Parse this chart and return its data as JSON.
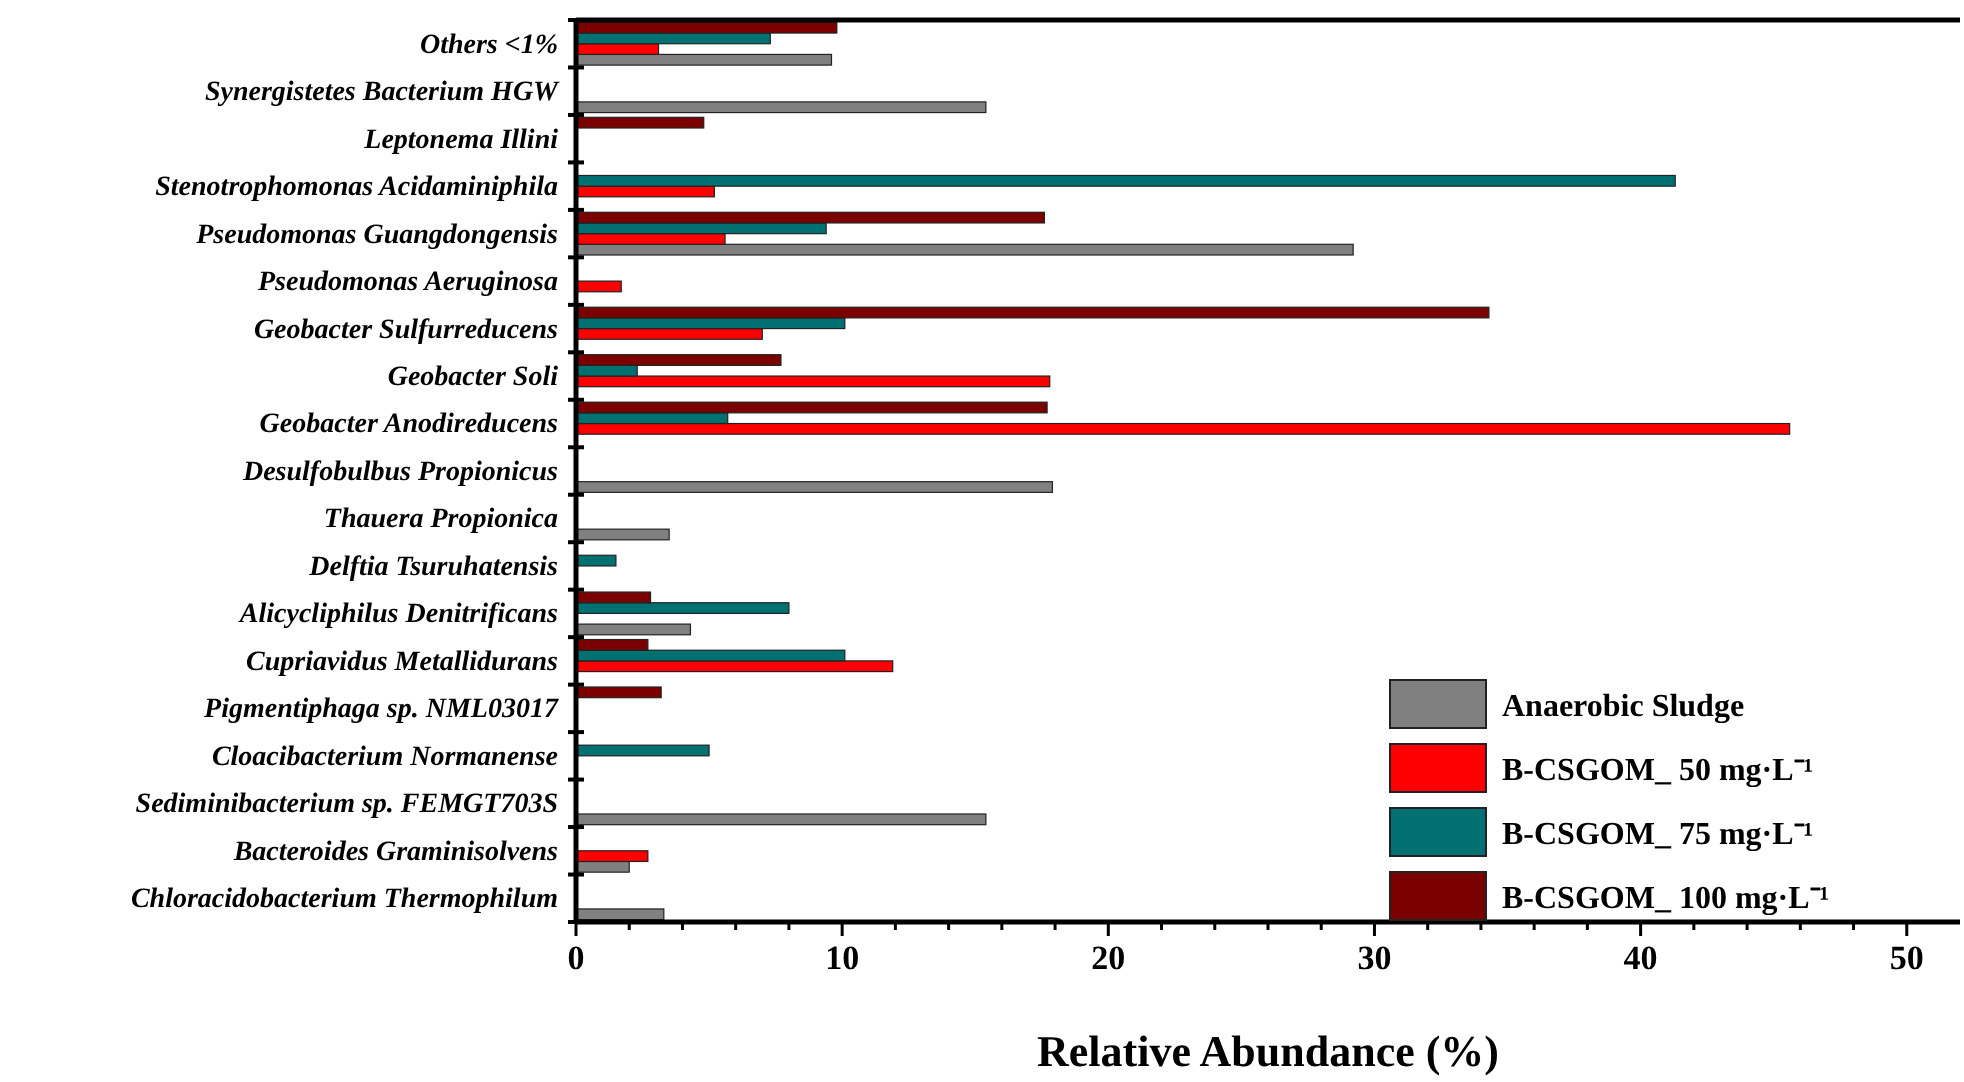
{
  "chart_data": {
    "type": "bar",
    "orientation": "horizontal",
    "xlabel": "Relative Abundance (%)",
    "categories": [
      "Others <1%",
      "Synergistetes Bacterium HGW",
      "Leptonema Illini",
      "Stenotrophomonas Acidaminiphila",
      "Pseudomonas Guangdongensis",
      "Pseudomonas Aeruginosa",
      "Geobacter Sulfurreducens",
      "Geobacter Soli",
      "Geobacter Anodireducens",
      "Desulfobulbus Propionicus",
      "Thauera Propionica",
      "Delftia Tsuruhatensis",
      "Alicycliphilus Denitrificans",
      "Cupriavidus Metallidurans",
      "Pigmentiphaga sp. NML03017",
      "Cloacibacterium Normanense",
      "Sediminibacterium sp. FEMGT703S",
      "Bacteroides Graminisolvens",
      "Chloracidobacterium Thermophilum"
    ],
    "series": [
      {
        "name": "Anaerobic Sludge",
        "color": "#808080",
        "values": [
          9.6,
          15.4,
          null,
          null,
          29.2,
          null,
          null,
          null,
          null,
          17.9,
          3.5,
          null,
          4.3,
          null,
          null,
          null,
          15.4,
          2.0,
          3.3
        ]
      },
      {
        "name": "B-CSGOM_ 50 mg·L⁻¹",
        "color": "#ff0000",
        "values": [
          3.1,
          null,
          null,
          5.2,
          5.6,
          1.7,
          7.0,
          17.8,
          45.6,
          null,
          null,
          null,
          null,
          11.9,
          null,
          null,
          null,
          2.7,
          null
        ]
      },
      {
        "name": "B-CSGOM_ 75 mg·L⁻¹",
        "color": "#007070",
        "values": [
          7.3,
          null,
          null,
          41.3,
          9.4,
          null,
          10.1,
          2.3,
          5.7,
          null,
          null,
          1.5,
          8.0,
          10.1,
          null,
          5.0,
          null,
          null,
          null
        ]
      },
      {
        "name": "B-CSGOM_ 100 mg·L⁻¹",
        "color": "#7b0000",
        "values": [
          9.8,
          null,
          4.8,
          null,
          17.6,
          null,
          34.3,
          7.7,
          17.7,
          null,
          null,
          null,
          2.8,
          2.7,
          3.2,
          null,
          null,
          null,
          null
        ]
      }
    ],
    "xlim": [
      0,
      52
    ],
    "xticks": [
      0,
      {
        "value": 2,
        "label": null
      },
      {
        "value": 4,
        "label": null
      },
      {
        "value": 6,
        "label": null
      },
      {
        "value": 8,
        "label": null
      },
      10,
      {
        "value": 12,
        "label": null
      },
      {
        "value": 14,
        "label": null
      },
      {
        "value": 16,
        "label": null
      },
      {
        "value": 18,
        "label": null
      },
      20,
      {
        "value": 22,
        "label": null
      },
      {
        "value": 24,
        "label": null
      },
      {
        "value": 26,
        "label": null
      },
      {
        "value": 28,
        "label": null
      },
      30,
      {
        "value": 32,
        "label": null
      },
      {
        "value": 34,
        "label": null
      },
      {
        "value": 36,
        "label": null
      },
      {
        "value": 38,
        "label": null
      },
      40,
      {
        "value": 42,
        "label": null
      },
      {
        "value": 44,
        "label": null
      },
      {
        "value": 46,
        "label": null
      },
      {
        "value": 48,
        "label": null
      },
      50
    ],
    "legend": "bottom right"
  }
}
